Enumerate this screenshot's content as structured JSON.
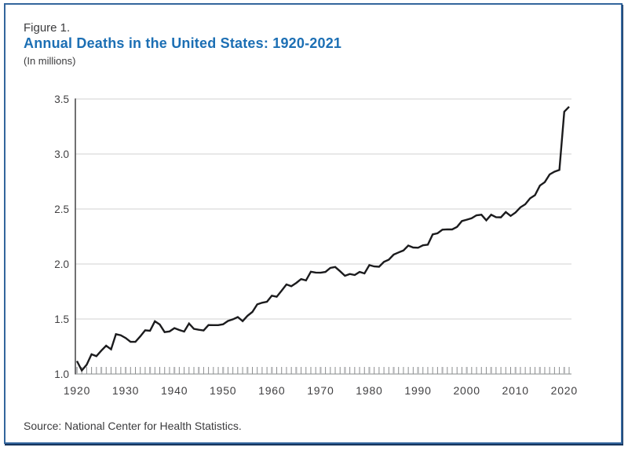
{
  "figure": {
    "label": "Figure 1.",
    "title": "Annual Deaths in the United States: 1920-2021",
    "subtitle": "(In millions)",
    "source": "Source: National Center for Health Statistics."
  },
  "colors": {
    "title_blue": "#1c6fb4",
    "text_dark": "#3b3b3d",
    "axis_label": "#414042",
    "line": "#1b1b1d",
    "gridline": "#dadadb",
    "axis_line": "#4d4d4f",
    "tick_minor": "#8a8c8e",
    "tick_mid": "#b5b6b8",
    "frame_border": "#33659c",
    "frame_shadow": "#17365d"
  },
  "chart_data": {
    "type": "line",
    "title": "Annual Deaths in the United States: 1920-2021",
    "units": "millions",
    "xlim": [
      1920,
      2021
    ],
    "ylim": [
      1.0,
      3.5
    ],
    "y_ticks": [
      1.0,
      1.5,
      2.0,
      2.5,
      3.0,
      3.5
    ],
    "x_label_ticks": [
      1920,
      1930,
      1940,
      1950,
      1960,
      1970,
      1980,
      1990,
      2000,
      2010,
      2020
    ],
    "grid": "horizontal",
    "legend": "none",
    "series": [
      {
        "name": "Annual deaths (millions)",
        "x": [
          1920,
          1921,
          1922,
          1923,
          1924,
          1925,
          1926,
          1927,
          1928,
          1929,
          1930,
          1931,
          1932,
          1933,
          1934,
          1935,
          1936,
          1937,
          1938,
          1939,
          1940,
          1941,
          1942,
          1943,
          1944,
          1945,
          1946,
          1947,
          1948,
          1949,
          1950,
          1951,
          1952,
          1953,
          1954,
          1955,
          1956,
          1957,
          1958,
          1959,
          1960,
          1961,
          1962,
          1963,
          1964,
          1965,
          1966,
          1967,
          1968,
          1969,
          1970,
          1971,
          1972,
          1973,
          1974,
          1975,
          1976,
          1977,
          1978,
          1979,
          1980,
          1981,
          1982,
          1983,
          1984,
          1985,
          1986,
          1987,
          1988,
          1989,
          1990,
          1991,
          1992,
          1993,
          1994,
          1995,
          1996,
          1997,
          1998,
          1999,
          2000,
          2001,
          2002,
          2003,
          2004,
          2005,
          2006,
          2007,
          2008,
          2009,
          2010,
          2011,
          2012,
          2013,
          2014,
          2015,
          2016,
          2017,
          2018,
          2019,
          2020,
          2021
        ],
        "values": [
          1.118,
          1.032,
          1.084,
          1.179,
          1.162,
          1.212,
          1.257,
          1.224,
          1.362,
          1.352,
          1.327,
          1.292,
          1.293,
          1.342,
          1.397,
          1.393,
          1.479,
          1.45,
          1.381,
          1.387,
          1.417,
          1.4,
          1.386,
          1.459,
          1.411,
          1.402,
          1.396,
          1.445,
          1.444,
          1.444,
          1.452,
          1.482,
          1.497,
          1.518,
          1.481,
          1.529,
          1.564,
          1.633,
          1.648,
          1.657,
          1.712,
          1.702,
          1.757,
          1.814,
          1.798,
          1.828,
          1.863,
          1.851,
          1.93,
          1.922,
          1.921,
          1.928,
          1.964,
          1.973,
          1.934,
          1.893,
          1.909,
          1.9,
          1.928,
          1.914,
          1.99,
          1.978,
          1.975,
          2.019,
          2.039,
          2.086,
          2.105,
          2.123,
          2.168,
          2.15,
          2.148,
          2.17,
          2.176,
          2.269,
          2.279,
          2.312,
          2.315,
          2.314,
          2.337,
          2.391,
          2.403,
          2.416,
          2.443,
          2.448,
          2.397,
          2.448,
          2.426,
          2.424,
          2.472,
          2.437,
          2.468,
          2.515,
          2.543,
          2.597,
          2.626,
          2.713,
          2.744,
          2.814,
          2.839,
          2.855,
          3.384,
          3.43
        ]
      }
    ]
  }
}
